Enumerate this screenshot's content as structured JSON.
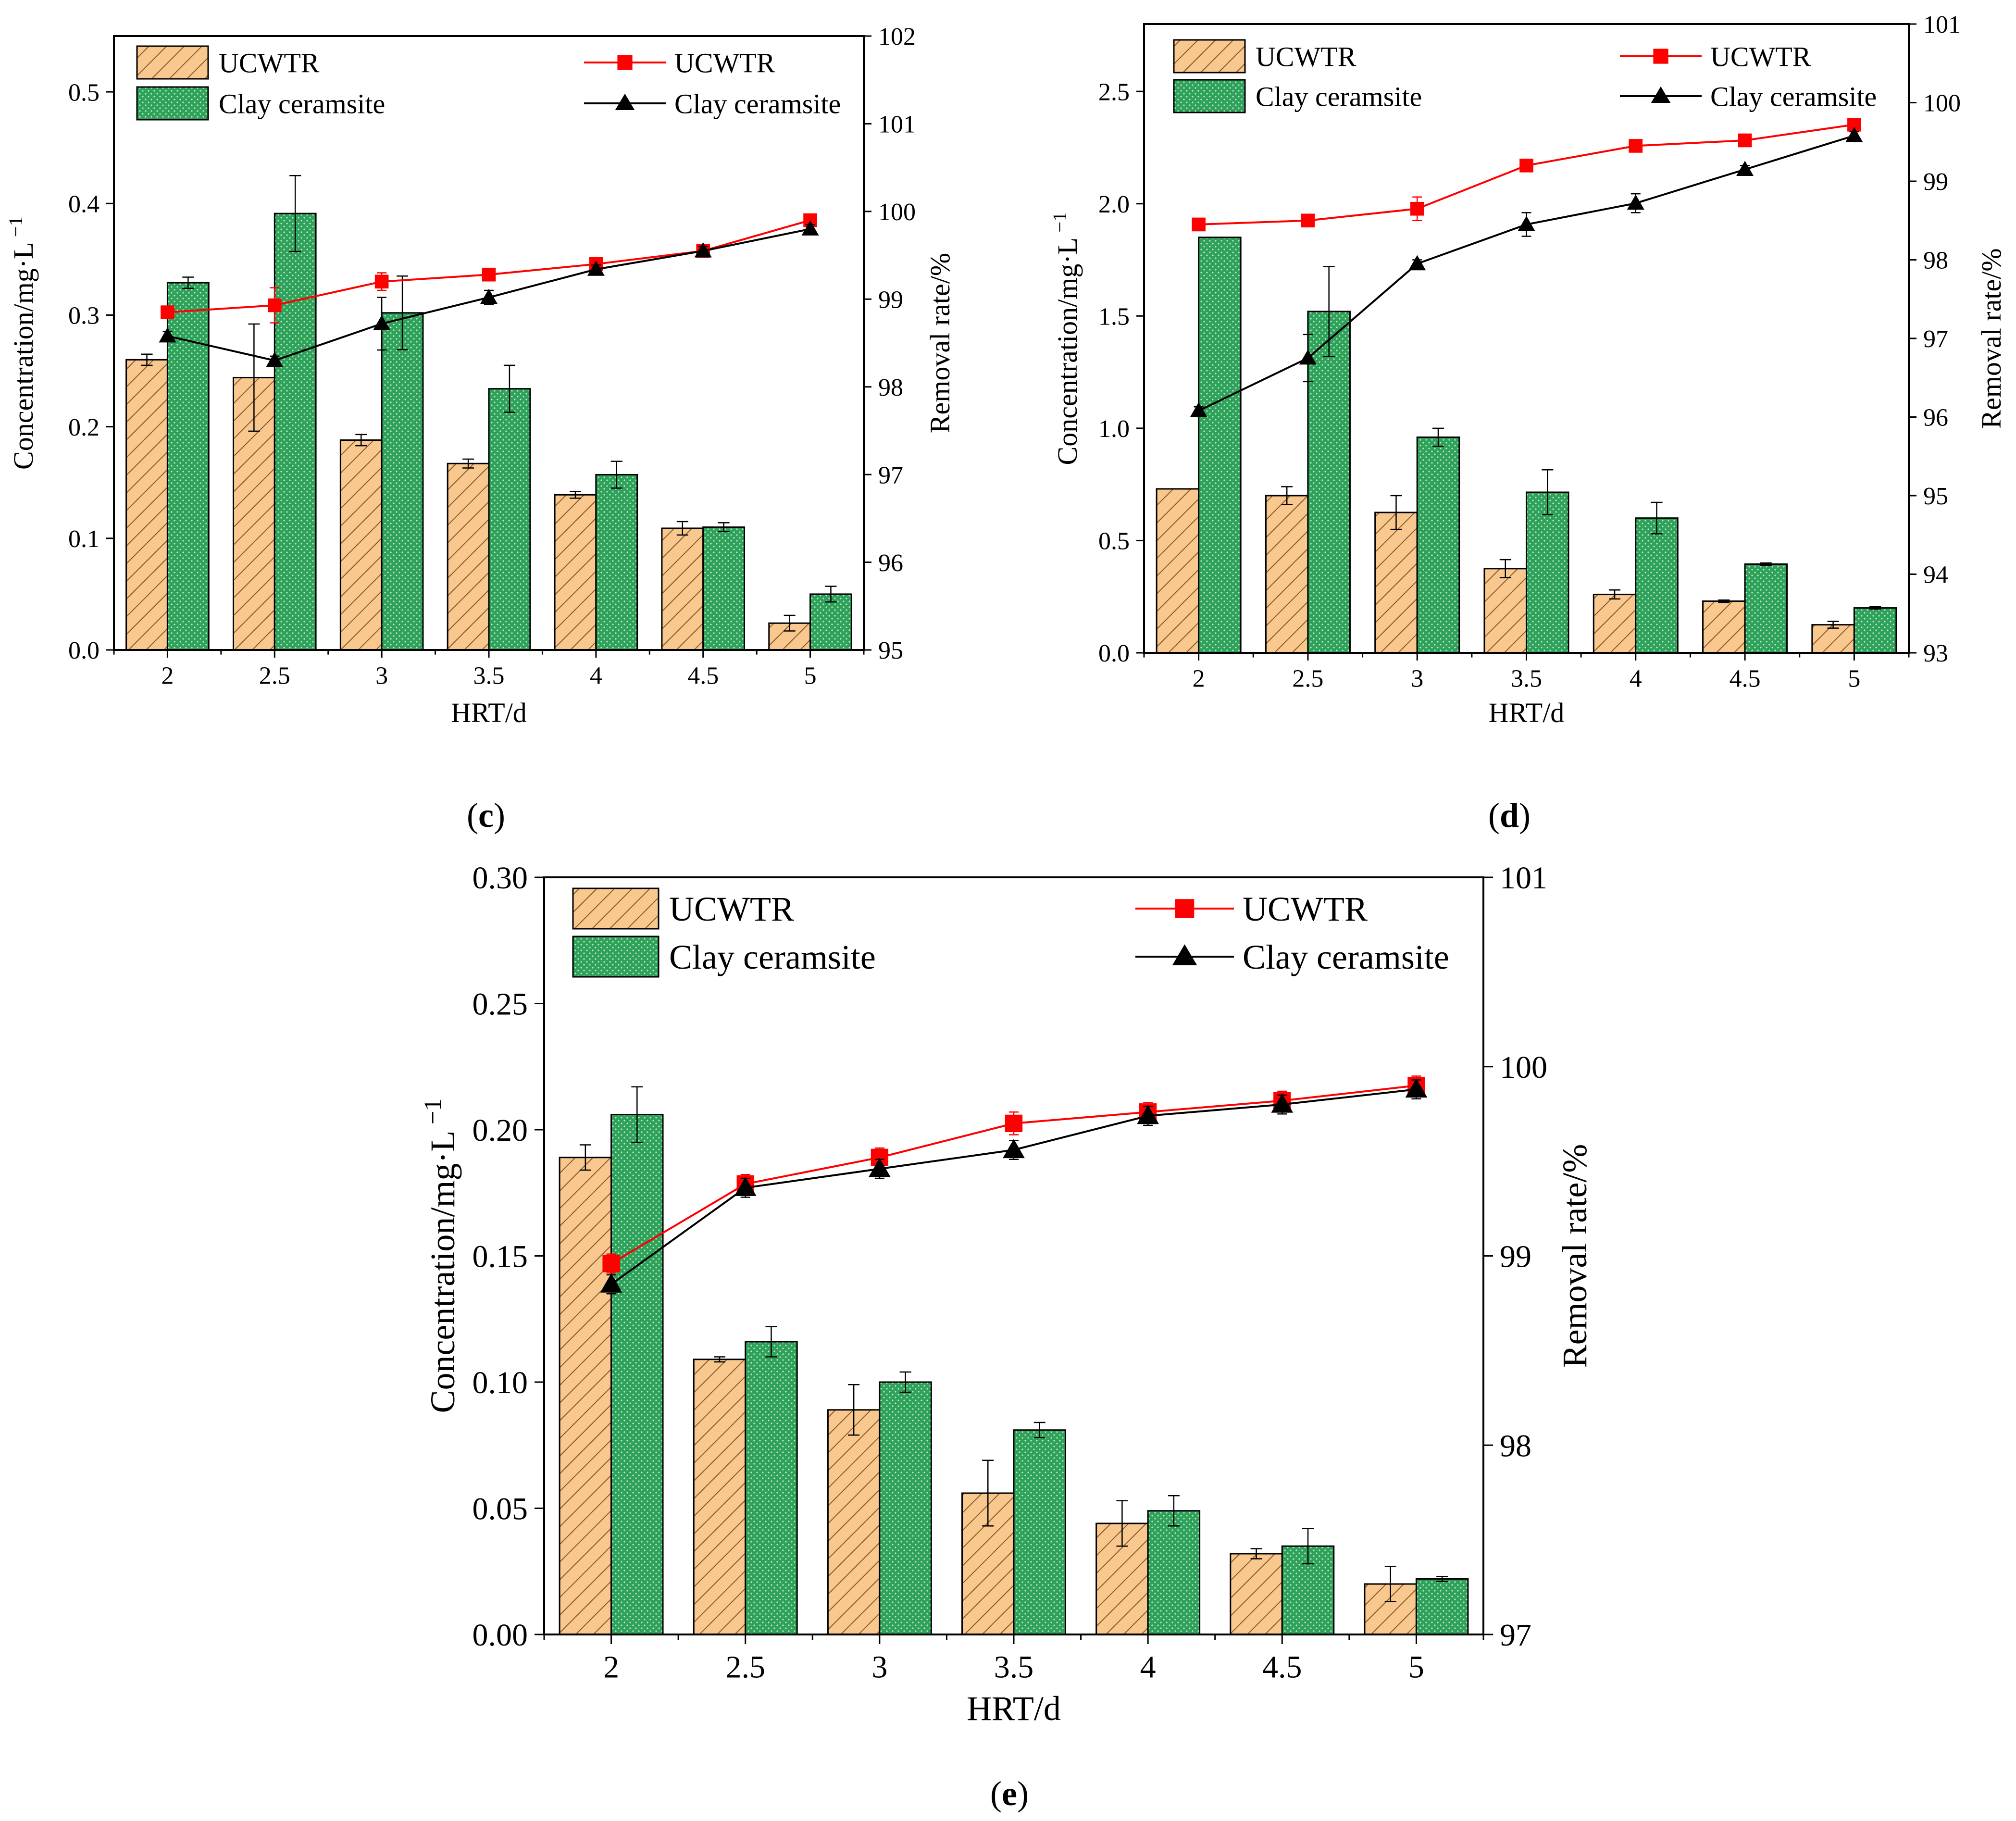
{
  "colors": {
    "ucwtr_bar": "#f8c88e",
    "ucwtr_hatch": "#8a5a2b",
    "clay_bar": "#2ea15a",
    "clay_dots": "#bfe8c8",
    "ucwtr_line": "#ff0000",
    "clay_line": "#000000"
  },
  "chart_data": [
    {
      "id": "c",
      "type": "bar",
      "panel_label": "(c)",
      "title": "",
      "xlabel": "HRT/d",
      "ylabel": "Concentration/mg·L",
      "ylabel_superscript": "−1",
      "ylabel_right": "Removal rate/%",
      "categories": [
        "2",
        "2.5",
        "3",
        "3.5",
        "4",
        "4.5",
        "5"
      ],
      "ylim": [
        0,
        0.55
      ],
      "yticks": [
        "0.0",
        "0.1",
        "0.2",
        "0.3",
        "0.4",
        "0.5"
      ],
      "ylim_right": [
        95,
        102
      ],
      "yticks_right": [
        "95",
        "96",
        "97",
        "98",
        "99",
        "100",
        "101",
        "102"
      ],
      "legend": {
        "bar_labels": [
          "UCWTR",
          "Clay ceramsite"
        ],
        "line_labels": [
          "UCWTR",
          "Clay ceramsite"
        ],
        "placement": "top"
      },
      "bar_series": [
        {
          "name": "UCWTR",
          "values": [
            0.26,
            0.244,
            0.188,
            0.167,
            0.139,
            0.109,
            0.024
          ],
          "errors": [
            0.005,
            0.048,
            0.005,
            0.004,
            0.003,
            0.006,
            0.007
          ]
        },
        {
          "name": "Clay ceramsite",
          "values": [
            0.329,
            0.391,
            0.302,
            0.234,
            0.157,
            0.11,
            0.05
          ],
          "errors": [
            0.005,
            0.034,
            0.033,
            0.021,
            0.012,
            0.004,
            0.007
          ]
        }
      ],
      "line_series": [
        {
          "name": "UCWTR",
          "values": [
            98.85,
            98.93,
            99.2,
            99.28,
            99.4,
            99.55,
            99.9
          ],
          "errors": [
            0,
            0.2,
            0.1,
            0.05,
            0.05,
            0.05,
            0.05
          ]
        },
        {
          "name": "Clay ceramsite",
          "values": [
            98.58,
            98.3,
            98.72,
            99.02,
            99.34,
            99.55,
            99.8
          ],
          "errors": [
            0.05,
            0.05,
            0.3,
            0.08,
            0.05,
            0.05,
            0.05
          ]
        }
      ]
    },
    {
      "id": "d",
      "type": "bar",
      "panel_label": "(d)",
      "title": "",
      "xlabel": "HRT/d",
      "ylabel": "Concentration/mg·L",
      "ylabel_superscript": "−1",
      "ylabel_right": "Removal rate/%",
      "categories": [
        "2",
        "2.5",
        "3",
        "3.5",
        "4",
        "4.5",
        "5"
      ],
      "ylim": [
        0,
        2.8
      ],
      "yticks": [
        "0.0",
        "0.5",
        "1.0",
        "1.5",
        "2.0",
        "2.5"
      ],
      "ylim_right": [
        93,
        101
      ],
      "yticks_right": [
        "93",
        "94",
        "95",
        "96",
        "97",
        "98",
        "99",
        "100",
        "101"
      ],
      "legend": {
        "bar_labels": [
          "UCWTR",
          "Clay ceramsite"
        ],
        "line_labels": [
          "UCWTR",
          "Clay ceramsite"
        ],
        "placement": "top"
      },
      "bar_series": [
        {
          "name": "UCWTR",
          "values": [
            0.73,
            0.7,
            0.625,
            0.375,
            0.26,
            0.23,
            0.125
          ],
          "errors": [
            0,
            0.04,
            0.075,
            0.04,
            0.02,
            0.005,
            0.015
          ]
        },
        {
          "name": "Clay ceramsite",
          "values": [
            1.85,
            1.52,
            0.96,
            0.715,
            0.6,
            0.395,
            0.2
          ],
          "errors": [
            0,
            0.2,
            0.04,
            0.1,
            0.07,
            0.005,
            0.005
          ]
        }
      ],
      "line_series": [
        {
          "name": "UCWTR",
          "values": [
            98.45,
            98.5,
            98.65,
            99.2,
            99.45,
            99.52,
            99.72
          ],
          "errors": [
            0.05,
            0.05,
            0.15,
            0.05,
            0.05,
            0.05,
            0.05
          ]
        },
        {
          "name": "Clay ceramsite",
          "values": [
            96.08,
            96.75,
            97.95,
            98.45,
            98.72,
            99.15,
            99.58
          ],
          "errors": [
            0.05,
            0.3,
            0.05,
            0.15,
            0.12,
            0.05,
            0.05
          ]
        }
      ]
    },
    {
      "id": "e",
      "type": "bar",
      "panel_label": "(e)",
      "title": "",
      "xlabel": "HRT/d",
      "ylabel": "Concentration/mg·L",
      "ylabel_superscript": "−1",
      "ylabel_right": "Removal rate/%",
      "categories": [
        "2",
        "2.5",
        "3",
        "3.5",
        "4",
        "4.5",
        "5"
      ],
      "ylim": [
        0,
        0.3
      ],
      "yticks": [
        "0.00",
        "0.05",
        "0.10",
        "0.15",
        "0.20",
        "0.25",
        "0.30"
      ],
      "ylim_right": [
        97,
        101
      ],
      "yticks_right": [
        "97",
        "98",
        "99",
        "100",
        "101"
      ],
      "legend": {
        "bar_labels": [
          "UCWTR",
          "Clay ceramsite"
        ],
        "line_labels": [
          "UCWTR",
          "Clay ceramsite"
        ],
        "placement": "top"
      },
      "bar_series": [
        {
          "name": "UCWTR",
          "values": [
            0.189,
            0.109,
            0.089,
            0.056,
            0.044,
            0.032,
            0.02
          ],
          "errors": [
            0.005,
            0.001,
            0.01,
            0.013,
            0.009,
            0.002,
            0.007
          ]
        },
        {
          "name": "Clay ceramsite",
          "values": [
            0.206,
            0.116,
            0.1,
            0.081,
            0.049,
            0.035,
            0.022
          ],
          "errors": [
            0.011,
            0.006,
            0.004,
            0.003,
            0.006,
            0.007,
            0.001
          ]
        }
      ],
      "line_series": [
        {
          "name": "UCWTR",
          "values": [
            98.96,
            99.38,
            99.52,
            99.7,
            99.76,
            99.82,
            99.9
          ],
          "errors": [
            0.05,
            0.05,
            0.05,
            0.06,
            0.05,
            0.05,
            0.05
          ]
        },
        {
          "name": "Clay ceramsite",
          "values": [
            98.85,
            99.36,
            99.46,
            99.56,
            99.74,
            99.8,
            99.88
          ],
          "errors": [
            0.05,
            0.05,
            0.05,
            0.05,
            0.05,
            0.05,
            0.05
          ]
        }
      ]
    }
  ]
}
